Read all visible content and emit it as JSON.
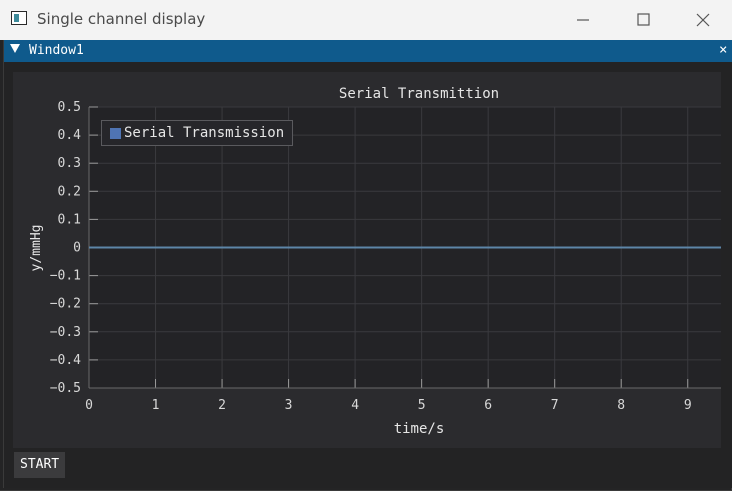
{
  "os_window": {
    "title": "Single channel display",
    "minimize_icon": "minimize-icon",
    "maximize_icon": "maximize-icon",
    "close_icon": "close-icon"
  },
  "imgui_window": {
    "title": "Window1",
    "close_glyph": "×"
  },
  "controls": {
    "start_label": "START"
  },
  "colors": {
    "titlebar_accent": "#0f5a8c",
    "series_line": "#5d86a8",
    "legend_swatch": "#4f74b3"
  },
  "chart_data": {
    "type": "line",
    "title": "Serial Transmittion",
    "xlabel": "time/s",
    "ylabel": "y/mmHg",
    "xlim": [
      0,
      9.5
    ],
    "ylim": [
      -0.5,
      0.5
    ],
    "xticks": [
      "0",
      "1",
      "2",
      "3",
      "4",
      "5",
      "6",
      "7",
      "8",
      "9"
    ],
    "yticks": [
      "0.5",
      "0.4",
      "0.3",
      "0.2",
      "0.1",
      "0",
      "−0.1",
      "−0.2",
      "−0.3",
      "−0.4",
      "−0.5"
    ],
    "grid": true,
    "legend_position": "top-left",
    "series": [
      {
        "name": "Serial Transmission",
        "x": [
          0,
          9.5
        ],
        "y": [
          0,
          0
        ]
      }
    ]
  }
}
